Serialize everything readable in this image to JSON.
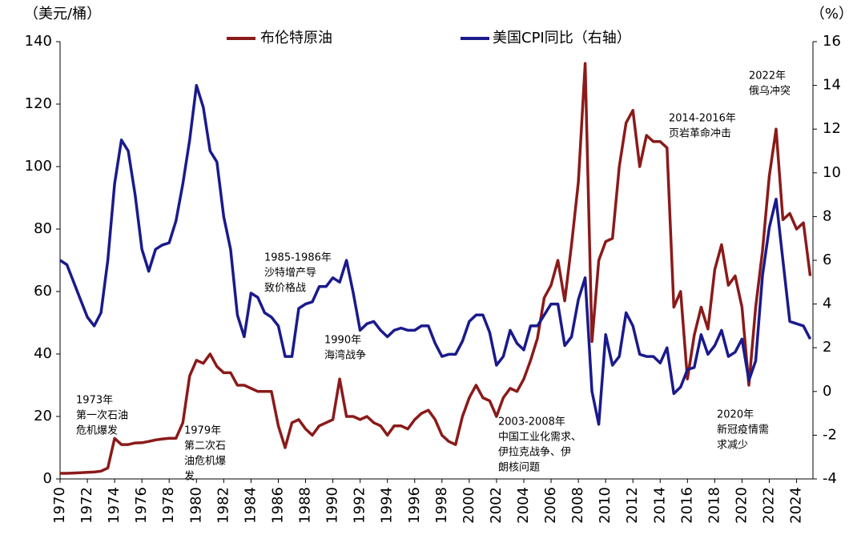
{
  "chart_data": {
    "type": "line",
    "y_label": "（美元/桶）",
    "y2_label": "（%）",
    "x": [
      1970,
      1970.5,
      1971,
      1971.5,
      1972,
      1972.5,
      1973,
      1973.5,
      1974,
      1974.5,
      1975,
      1975.5,
      1976,
      1976.5,
      1977,
      1977.5,
      1978,
      1978.5,
      1979,
      1979.5,
      1980,
      1980.5,
      1981,
      1981.5,
      1982,
      1982.5,
      1983,
      1983.5,
      1984,
      1984.5,
      1985,
      1985.5,
      1986,
      1986.5,
      1987,
      1987.5,
      1988,
      1988.5,
      1989,
      1989.5,
      1990,
      1990.5,
      1991,
      1991.5,
      1992,
      1992.5,
      1993,
      1993.5,
      1994,
      1994.5,
      1995,
      1995.5,
      1996,
      1996.5,
      1997,
      1997.5,
      1998,
      1998.5,
      1999,
      1999.5,
      2000,
      2000.5,
      2001,
      2001.5,
      2002,
      2002.5,
      2003,
      2003.5,
      2004,
      2004.5,
      2005,
      2005.5,
      2006,
      2006.5,
      2007,
      2007.5,
      2008,
      2008.5,
      2009,
      2009.5,
      2010,
      2010.5,
      2011,
      2011.5,
      2012,
      2012.5,
      2013,
      2013.5,
      2014,
      2014.5,
      2015,
      2015.5,
      2016,
      2016.5,
      2017,
      2017.5,
      2018,
      2018.5,
      2019,
      2019.5,
      2020,
      2020.5,
      2021,
      2021.5,
      2022,
      2022.5,
      2023,
      2023.5,
      2024,
      2024.5,
      2025
    ],
    "series": [
      {
        "name": "布伦特原油",
        "color": "#8b1a1a",
        "values": [
          1.8,
          1.8,
          1.9,
          2.0,
          2.1,
          2.2,
          2.5,
          3.5,
          13,
          11,
          11,
          11.5,
          11.6,
          12,
          12.5,
          12.8,
          13,
          13,
          18,
          33,
          38,
          37,
          40,
          36,
          34,
          34,
          30,
          30,
          29,
          28,
          28,
          28,
          17,
          10,
          18,
          19,
          16,
          14,
          17,
          18,
          19,
          32,
          20,
          20,
          19,
          20,
          18,
          17,
          14,
          17,
          17,
          16,
          19,
          21,
          22,
          19,
          14,
          12,
          11,
          20,
          26,
          30,
          26,
          25,
          20,
          26,
          29,
          28,
          32,
          38,
          45,
          58,
          62,
          70,
          57,
          75,
          95,
          133,
          44,
          70,
          76,
          77,
          100,
          114,
          118,
          100,
          110,
          108,
          108,
          106,
          55,
          60,
          32,
          46,
          55,
          48,
          67,
          75,
          62,
          65,
          55,
          30,
          55,
          73,
          97,
          112,
          83,
          85,
          80,
          82,
          65
        ]
      },
      {
        "name": "美国CPI同比（右轴）",
        "color": "#1a1a8c",
        "axis": "y2",
        "values": [
          6.0,
          5.8,
          5.0,
          4.2,
          3.4,
          3.0,
          3.6,
          6.0,
          9.5,
          11.5,
          11.0,
          9.0,
          6.5,
          5.5,
          6.5,
          6.7,
          6.8,
          7.8,
          9.5,
          11.5,
          14.0,
          13.0,
          11.0,
          10.5,
          8.0,
          6.5,
          3.5,
          2.5,
          4.5,
          4.3,
          3.6,
          3.4,
          3.0,
          1.6,
          1.6,
          3.8,
          4.0,
          4.1,
          4.8,
          4.8,
          5.2,
          5.0,
          6.0,
          4.5,
          2.8,
          3.1,
          3.2,
          2.8,
          2.5,
          2.8,
          2.9,
          2.8,
          2.8,
          3.0,
          3.0,
          2.2,
          1.6,
          1.7,
          1.7,
          2.3,
          3.2,
          3.5,
          3.5,
          2.7,
          1.2,
          1.6,
          2.8,
          2.2,
          1.9,
          3.0,
          3.0,
          3.5,
          4.0,
          4.0,
          2.1,
          2.5,
          4.2,
          5.2,
          0.0,
          -1.5,
          2.6,
          1.2,
          1.6,
          3.6,
          3.0,
          1.7,
          1.6,
          1.6,
          1.3,
          2.0,
          -0.1,
          0.2,
          1.0,
          1.1,
          2.6,
          1.7,
          2.1,
          2.8,
          1.6,
          1.8,
          2.4,
          0.5,
          1.4,
          5.3,
          7.5,
          8.8,
          6.0,
          3.2,
          3.1,
          3.0,
          2.4
        ]
      }
    ],
    "xlim": [
      1970,
      2025.2
    ],
    "xticks": [
      1970,
      1972,
      1974,
      1976,
      1978,
      1980,
      1982,
      1984,
      1986,
      1988,
      1990,
      1992,
      1994,
      1996,
      1998,
      2000,
      2002,
      2004,
      2006,
      2008,
      2010,
      2012,
      2014,
      2016,
      2018,
      2020,
      2022,
      2024
    ],
    "ylim": [
      0,
      140
    ],
    "yticks": [
      0,
      20,
      40,
      60,
      80,
      100,
      120,
      140
    ],
    "y2lim": [
      -4,
      16
    ],
    "y2ticks": [
      -4,
      -2,
      0,
      2,
      4,
      6,
      8,
      10,
      12,
      14,
      16
    ],
    "y2_color": "#e00000",
    "grid": false,
    "annotations": [
      [
        "1973年",
        "第一次石油",
        "危机爆发"
      ],
      [
        "1979年",
        "第二次石",
        "油危机爆",
        "发"
      ],
      [
        "1985-1986年",
        "沙特增产导",
        "致价格战"
      ],
      [
        "1990年",
        "海湾战争"
      ],
      [
        "2003-2008年",
        "中国工业化需求、",
        "伊拉克战争、伊",
        "朗核问题"
      ],
      [
        "2014-2016年",
        "页岩革命冲击"
      ],
      [
        "2020年",
        "新冠疫情需",
        "求减少"
      ],
      [
        "2022年",
        "俄乌冲突"
      ]
    ]
  }
}
